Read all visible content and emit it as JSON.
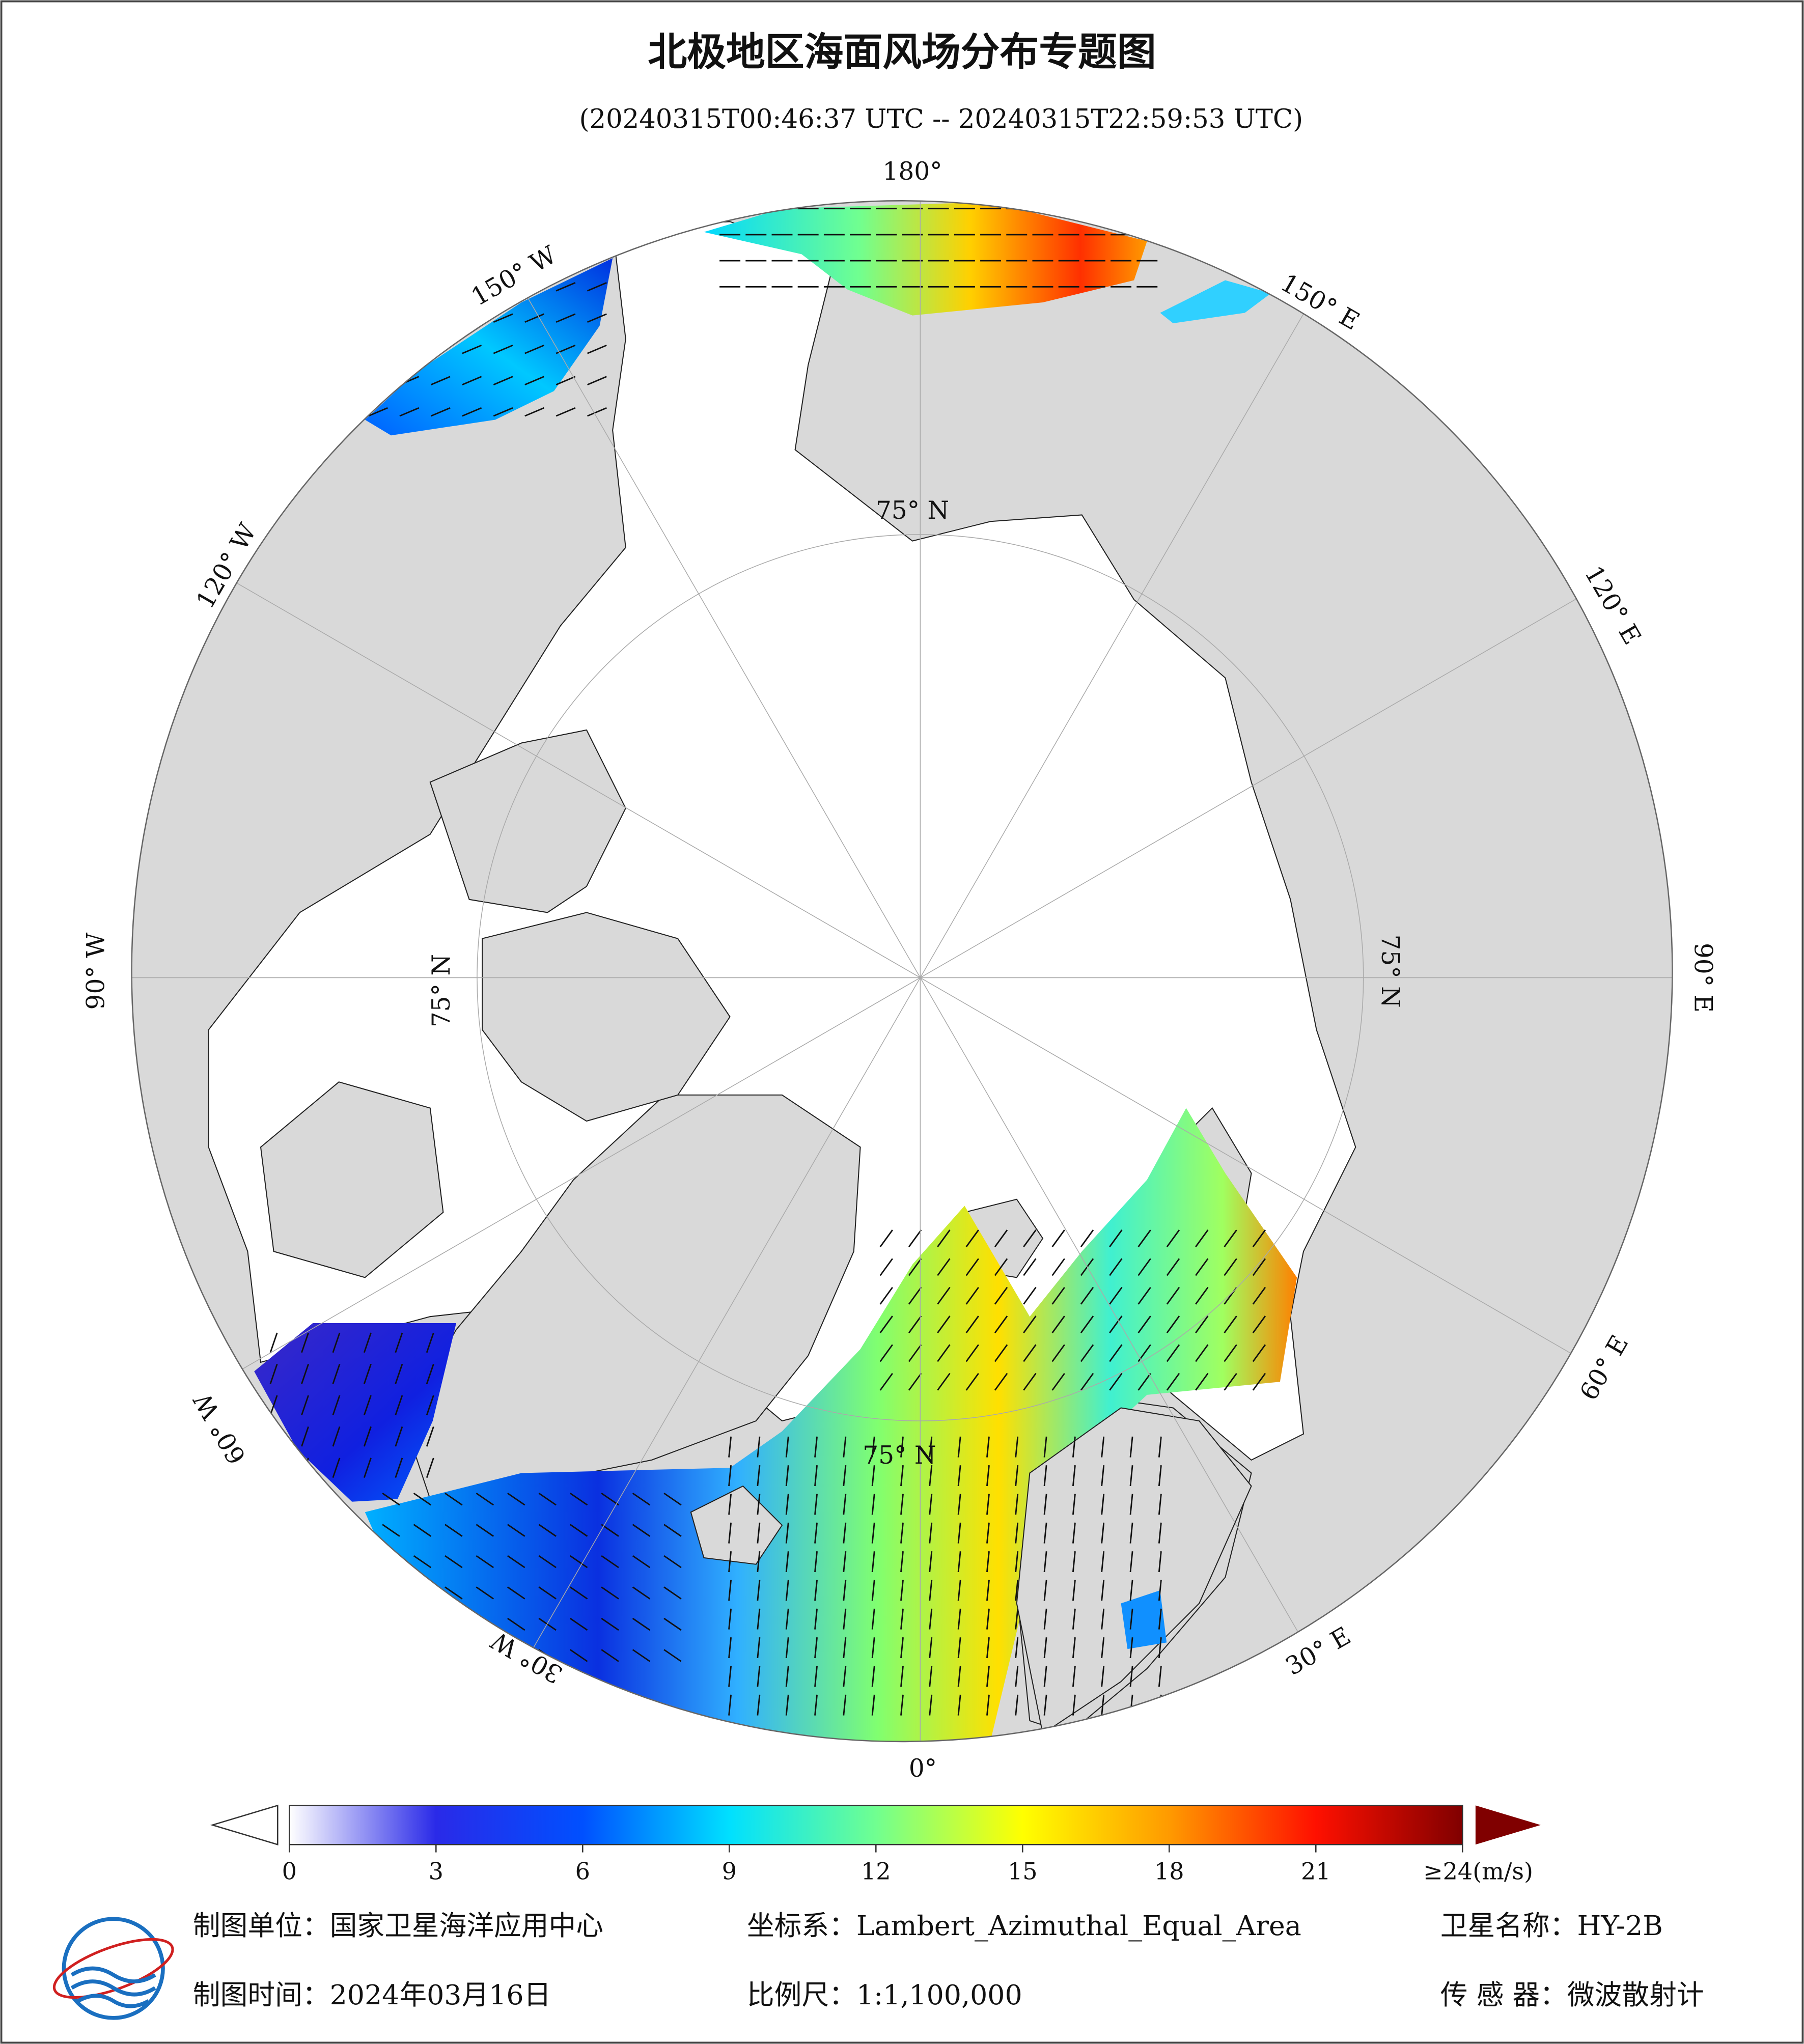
{
  "title": "北极地区海面风场分布专题图",
  "subtitle": "(20240315T00:46:37 UTC -- 20240315T22:59:53 UTC)",
  "map": {
    "longitude_labels": [
      "180°",
      "150° E",
      "120° E",
      "90° E",
      "60° E",
      "30° E",
      "0°",
      "30° W",
      "60° W",
      "90° W",
      "120° W",
      "150° W"
    ],
    "latitude_labels": [
      "75° N",
      "75° N",
      "75° N",
      "75° N"
    ]
  },
  "colorbar": {
    "range": [
      0,
      24
    ],
    "ticks": [
      0,
      3,
      6,
      9,
      12,
      15,
      18,
      21,
      {
        "value": 24,
        "label": "≥24(m/s)"
      }
    ],
    "colors": [
      "#ffffff",
      "#2a2ae8",
      "#0050ff",
      "#00e0ff",
      "#70ff90",
      "#ffff00",
      "#ff9a00",
      "#ff1000",
      "#800000"
    ]
  },
  "footer": {
    "organization": "制图单位：国家卫星海洋应用中心",
    "coordinate_system": "坐标系：Lambert_Azimuthal_Equal_Area",
    "satellite": "卫星名称：HY-2B",
    "date": "制图时间：2024年03月16日",
    "scale": "比例尺：1:1,100,000",
    "sensor": "传 感 器：微波散射计"
  }
}
